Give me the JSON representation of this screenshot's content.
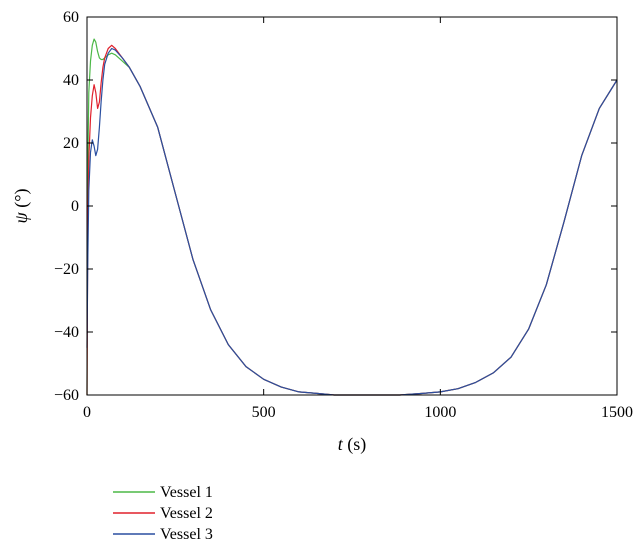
{
  "chart_data": {
    "type": "line",
    "xlabel_var": "t",
    "xlabel_unit": " (s)",
    "ylabel_var": "ψ",
    "ylabel_unit": " (°)",
    "xlim": [
      0,
      1500
    ],
    "ylim": [
      -60,
      60
    ],
    "xticks": [
      0,
      500,
      1000,
      1500
    ],
    "xtick_labels": [
      "0",
      "500",
      "1000",
      "1500"
    ],
    "yticks": [
      -60,
      -40,
      -20,
      0,
      20,
      40,
      60
    ],
    "ytick_labels": [
      "−60",
      "−40",
      "−20",
      "0",
      "20",
      "40",
      "60"
    ],
    "grid": false,
    "legend_position": "bottom-left-outside",
    "series": [
      {
        "name": "Vessel 1",
        "color": "#4cb847",
        "x": [
          0,
          2,
          5,
          10,
          15,
          20,
          25,
          30,
          35,
          40,
          45,
          50,
          60,
          70,
          80,
          100,
          120,
          150,
          200,
          250,
          300,
          350,
          400,
          450,
          500,
          550,
          600,
          650,
          700,
          750,
          800,
          850,
          885,
          950,
          1000,
          1050,
          1100,
          1150,
          1200,
          1250,
          1300,
          1350,
          1400,
          1450,
          1500
        ],
        "y": [
          -60,
          10,
          36,
          46,
          51,
          53,
          52,
          49,
          47,
          46.5,
          46.5,
          47,
          48,
          48.5,
          48,
          46,
          44,
          38,
          25,
          4,
          -17,
          -33,
          -44,
          -51,
          -55,
          -57.5,
          -59,
          -59.5,
          -60,
          -60,
          -60,
          -60,
          -60,
          -59.5,
          -59,
          -58,
          -56,
          -53,
          -48,
          -39,
          -25,
          -5,
          16,
          31,
          40
        ]
      },
      {
        "name": "Vessel 2",
        "color": "#e0202c",
        "x": [
          0,
          2,
          5,
          10,
          15,
          20,
          25,
          30,
          35,
          40,
          45,
          50,
          60,
          70,
          80,
          100,
          120,
          150,
          200,
          250,
          300,
          350,
          400,
          450,
          500,
          550,
          600,
          650,
          700,
          750,
          800,
          850,
          885,
          950,
          1000,
          1050,
          1100,
          1150,
          1200,
          1250,
          1300,
          1350,
          1400,
          1450,
          1500
        ],
        "y": [
          -60,
          -10,
          15,
          28,
          35,
          38.5,
          36,
          31,
          33,
          39,
          44,
          47,
          50,
          51,
          50,
          47,
          44,
          38,
          25,
          4,
          -17,
          -33,
          -44,
          -51,
          -55,
          -57.5,
          -59,
          -59.5,
          -60,
          -60,
          -60,
          -60,
          -60,
          -59.5,
          -59,
          -58,
          -56,
          -53,
          -48,
          -39,
          -25,
          -5,
          16,
          31,
          40
        ]
      },
      {
        "name": "Vessel 3",
        "color": "#2a4fa0",
        "x": [
          0,
          2,
          5,
          10,
          15,
          20,
          25,
          30,
          35,
          40,
          45,
          50,
          60,
          70,
          80,
          100,
          120,
          150,
          200,
          250,
          300,
          350,
          400,
          450,
          500,
          550,
          600,
          650,
          700,
          750,
          800,
          850,
          885,
          950,
          1000,
          1050,
          1100,
          1150,
          1200,
          1250,
          1300,
          1350,
          1400,
          1450,
          1500
        ],
        "y": [
          -45,
          -20,
          5,
          17,
          21,
          19,
          16,
          18,
          25,
          33,
          40,
          45,
          48.5,
          50,
          49.5,
          47,
          44,
          38,
          25,
          4,
          -17,
          -33,
          -44,
          -51,
          -55,
          -57.5,
          -59,
          -59.5,
          -60,
          -60,
          -60,
          -60,
          -60,
          -59.5,
          -59,
          -58,
          -56,
          -53,
          -48,
          -39,
          -25,
          -5,
          16,
          31,
          40
        ]
      }
    ]
  }
}
